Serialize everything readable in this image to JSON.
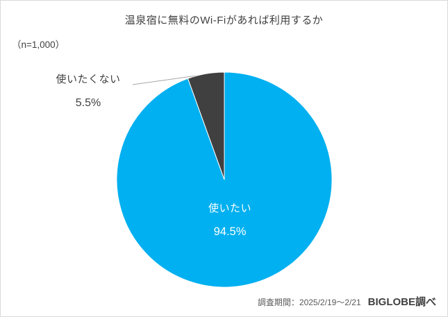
{
  "chart": {
    "title": "温泉宿に無料のWi-Fiがあれば利用するか",
    "n_label": "（n=1,000）",
    "footer": {
      "period": "調査期間：2025/2/19～2/21",
      "source": "BIGLOBE調べ"
    }
  },
  "chart_data": {
    "type": "pie",
    "title": "温泉宿に無料のWi-Fiがあれば利用するか",
    "n": 1000,
    "start_angle_deg": 0,
    "direction": "clockwise",
    "legend_position": "none",
    "slices": [
      {
        "label": "使いたい",
        "value": 94.5,
        "display": "94.5%",
        "color": "#00B0F0",
        "label_position": "inside"
      },
      {
        "label": "使いたくない",
        "value": 5.5,
        "display": "5.5%",
        "color": "#404040",
        "label_position": "outside"
      }
    ]
  }
}
